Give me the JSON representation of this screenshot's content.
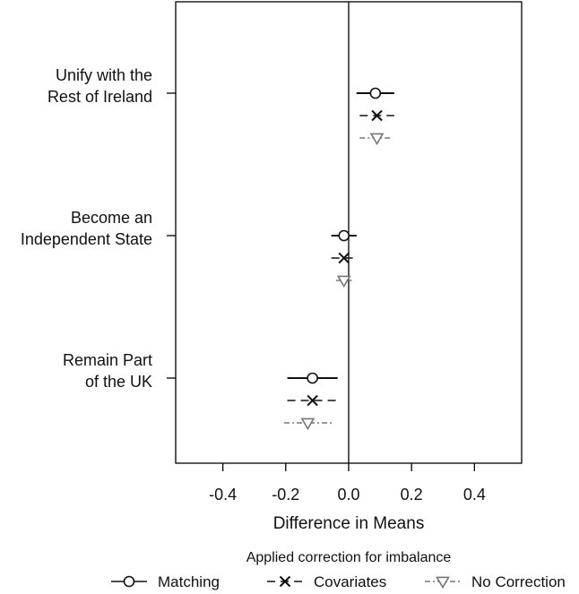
{
  "chart_data": {
    "type": "coefficient-dot-plot",
    "title": "",
    "xlabel": "Difference in Means",
    "ylabel": "",
    "xlim": [
      -0.55,
      0.55
    ],
    "xticks": [
      -0.4,
      -0.2,
      0.0,
      0.2,
      0.4
    ],
    "xtick_labels": [
      "-0.4",
      "-0.2",
      "0.0",
      "0.2",
      "0.4"
    ],
    "reference_line": 0,
    "grid": false,
    "categories": [
      {
        "label_lines": [
          "Unify with the",
          "Rest of Ireland"
        ]
      },
      {
        "label_lines": [
          "Become an",
          "Independent State"
        ]
      },
      {
        "label_lines": [
          "Remain Part",
          "of the UK"
        ]
      }
    ],
    "legend": {
      "title": "Applied correction for imbalance",
      "position": "bottom"
    },
    "series": [
      {
        "name": "Matching",
        "marker": "circle",
        "line_style": "solid",
        "color": "#111111",
        "estimates": [
          0.085,
          -0.015,
          -0.115
        ],
        "ci_low": [
          0.025,
          -0.055,
          -0.195
        ],
        "ci_high": [
          0.145,
          0.025,
          -0.035
        ]
      },
      {
        "name": "Covariates",
        "marker": "x",
        "line_style": "dashed",
        "color": "#111111",
        "estimates": [
          0.09,
          -0.015,
          -0.115
        ],
        "ci_low": [
          0.035,
          -0.055,
          -0.195
        ],
        "ci_high": [
          0.145,
          0.025,
          -0.04
        ]
      },
      {
        "name": "No Correction",
        "marker": "triangle-down",
        "line_style": "dotdash",
        "color": "#777777",
        "estimates": [
          0.09,
          -0.015,
          -0.13
        ],
        "ci_low": [
          0.035,
          -0.04,
          -0.205
        ],
        "ci_high": [
          0.14,
          0.01,
          -0.05
        ]
      }
    ]
  }
}
